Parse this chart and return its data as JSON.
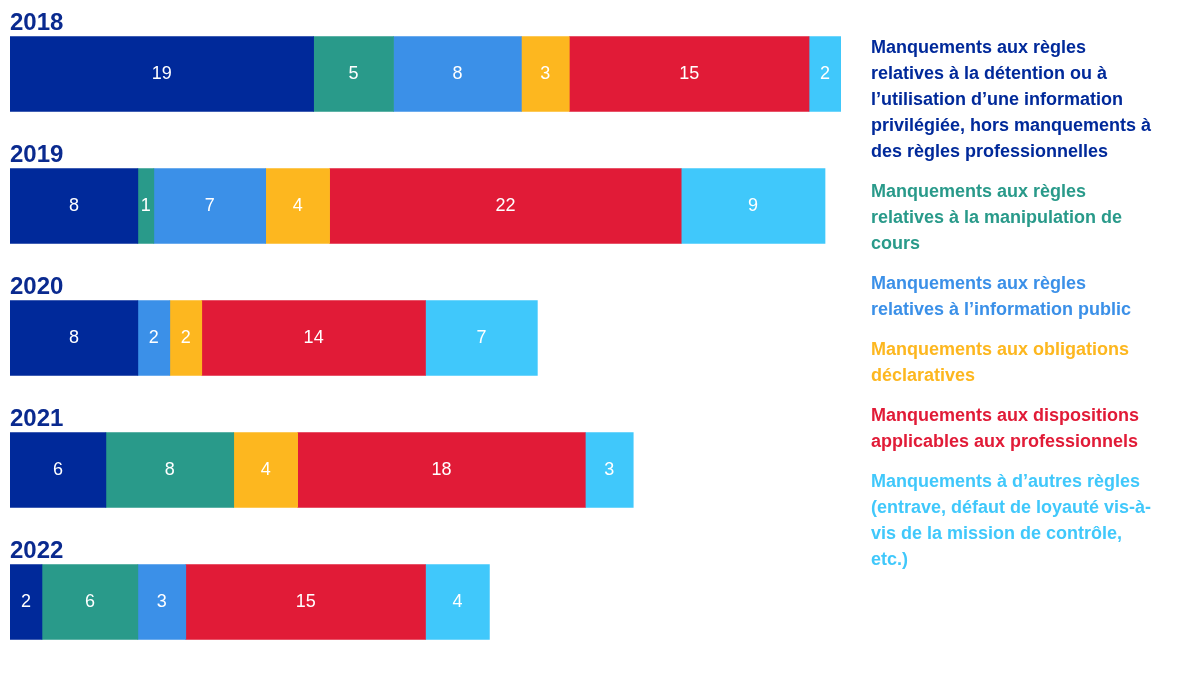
{
  "chart_data": {
    "type": "bar",
    "orientation": "horizontal",
    "stacked": true,
    "data_labels": true,
    "legend": "right",
    "categories": [
      "2018",
      "2019",
      "2020",
      "2021",
      "2022"
    ],
    "series": [
      {
        "name": "Manquements aux règles relatives à la détention ou à l’utilisation d’une information privilégiée, hors manquements à des règles professionnelles",
        "color": "#00299a",
        "values": [
          19,
          8,
          8,
          6,
          2
        ]
      },
      {
        "name": "Manquements aux règles relatives à la manipulation de cours",
        "color": "#299a8a",
        "values": [
          5,
          1,
          null,
          8,
          6
        ]
      },
      {
        "name": "Manquements aux règles relatives à l’information public",
        "color": "#3b90e8",
        "values": [
          8,
          7,
          2,
          null,
          3
        ]
      },
      {
        "name": "Manquements aux obligations déclaratives",
        "color": "#fdb71f",
        "values": [
          3,
          4,
          2,
          4,
          null
        ]
      },
      {
        "name": "Manquements aux dispositions applicables aux professionnels",
        "color": "#e11b37",
        "values": [
          15,
          22,
          14,
          18,
          15
        ]
      },
      {
        "name": "Manquements à d’autres règles (entrave, défaut de loyauté vis-à-vis de la mission de contrôle, etc.)",
        "color": "#40c8fb",
        "values": [
          2,
          9,
          7,
          3,
          4
        ]
      }
    ]
  }
}
